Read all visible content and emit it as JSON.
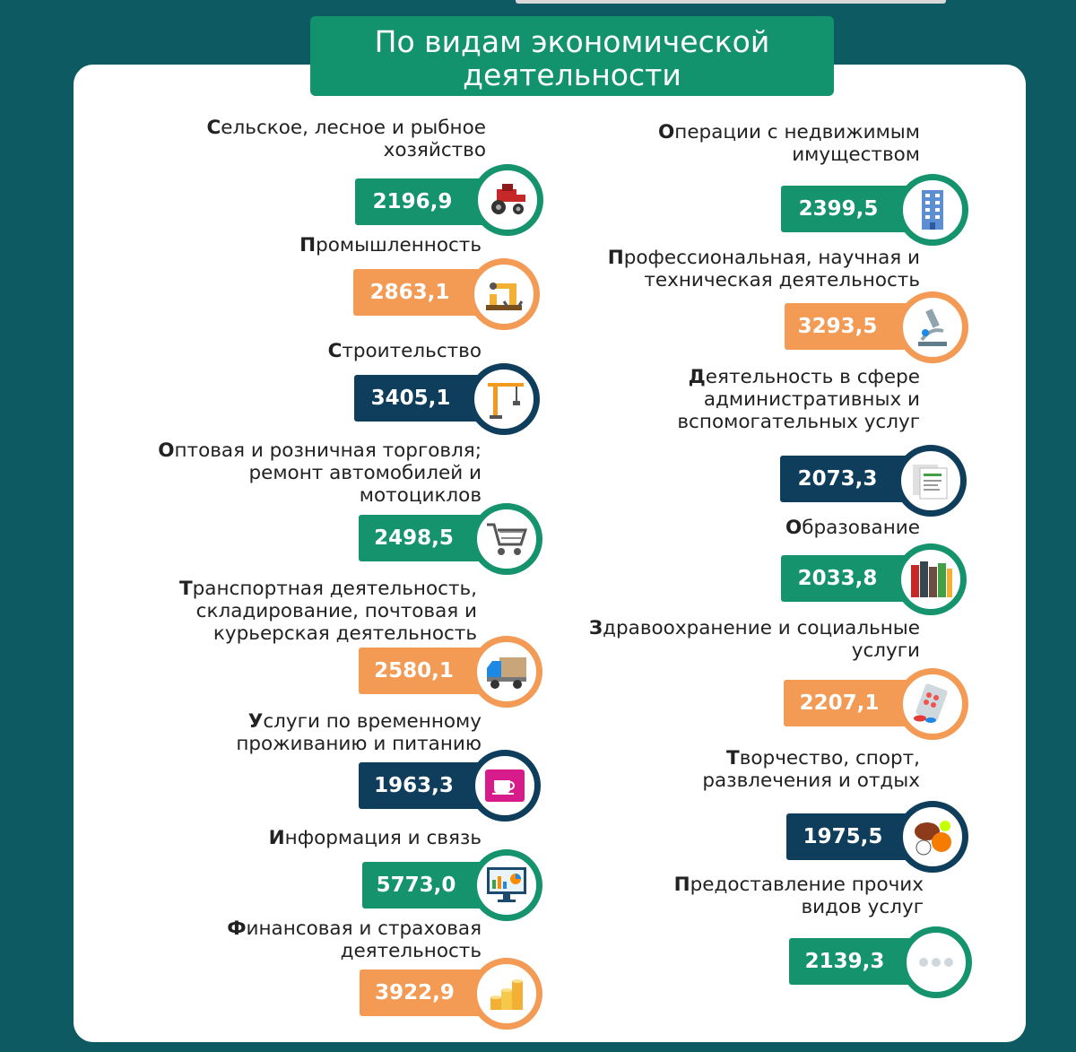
{
  "title": "По видам экономической\nдеятельности",
  "items": [
    {
      "label": "Сельское, лесное и рыбное\nхозяйство",
      "value": "2196,9",
      "color": "green",
      "icon": "tractor-icon"
    },
    {
      "label": "Промышленность",
      "value": "2863,1",
      "color": "orange",
      "icon": "robot-arm-icon"
    },
    {
      "label": "Строительство",
      "value": "3405,1",
      "color": "navy",
      "icon": "crane-icon"
    },
    {
      "label": "Оптовая и розничная торговля;\nремонт автомобилей и\nмотоциклов",
      "value": "2498,5",
      "color": "green",
      "icon": "shopping-cart-icon"
    },
    {
      "label": "Транспортная деятельность,\nскладирование, почтовая и\nкурьерская деятельность",
      "value": "2580,1",
      "color": "orange",
      "icon": "truck-icon"
    },
    {
      "label": "Услуги по временному\nпроживанию и питанию",
      "value": "1963,3",
      "color": "navy",
      "icon": "coffee-cup-icon"
    },
    {
      "label": "Информация и связь",
      "value": "5773,0",
      "color": "green",
      "icon": "computer-monitor-icon"
    },
    {
      "label": "Финансовая  и страховая\nдеятельность",
      "value": "3922,9",
      "color": "orange",
      "icon": "coins-icon"
    },
    {
      "label": "Операции с недвижимым\nимуществом",
      "value": "2399,5",
      "color": "green",
      "icon": "building-icon"
    },
    {
      "label": "Профессиональная, научная и\nтехническая деятельность",
      "value": "3293,5",
      "color": "orange",
      "icon": "microscope-icon"
    },
    {
      "label": "Деятельность в сфере\nадминистративных и\nвспомогательных услуг",
      "value": "2073,3",
      "color": "navy",
      "icon": "documents-icon"
    },
    {
      "label": "Образование",
      "value": "2033,8",
      "color": "green",
      "icon": "books-icon"
    },
    {
      "label": "Здравоохранение и социальные\nуслуги",
      "value": "2207,1",
      "color": "orange",
      "icon": "pills-icon"
    },
    {
      "label": "Творчество, спорт,\nразвлечения и отдых",
      "value": "1975,5",
      "color": "navy",
      "icon": "sports-balls-icon"
    },
    {
      "label": "Предоставление прочих\nвидов услуг",
      "value": "2139,3",
      "color": "green",
      "icon": "more-dots-icon"
    }
  ]
}
